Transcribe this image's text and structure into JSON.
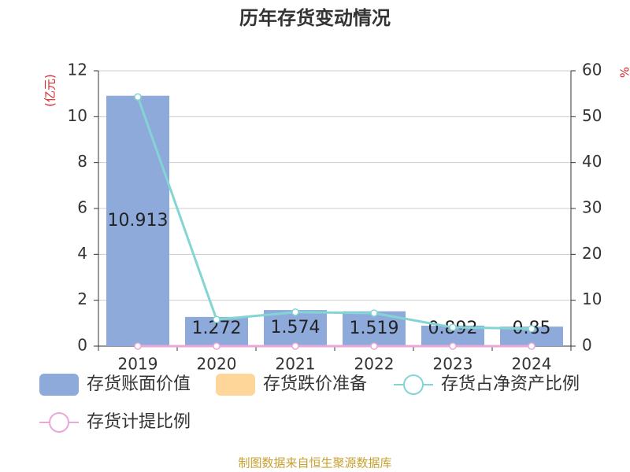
{
  "chart_data": {
    "type": "bar",
    "title": "历年存货变动情况",
    "y_label": "(亿元)",
    "y2_label": "%",
    "source": "制图数据来自恒生聚源数据库",
    "categories": [
      "2019",
      "2020",
      "2021",
      "2022",
      "2023",
      "2024"
    ],
    "series": [
      {
        "name": "存货账面价值",
        "type": "bar",
        "color": "#8eaadb",
        "values": [
          10.913,
          1.272,
          1.574,
          1.519,
          0.892,
          0.85
        ]
      },
      {
        "name": "存货跌价准备",
        "type": "bar",
        "color": "#ffd699",
        "values": [
          0,
          0,
          0,
          0,
          0,
          0
        ]
      },
      {
        "name": "存货占净资产比例",
        "type": "line",
        "axis": "y2",
        "color": "#84d4d4",
        "values": [
          54.3,
          5.8,
          7.4,
          7.2,
          4.1,
          3.8
        ]
      },
      {
        "name": "存货计提比例",
        "type": "line",
        "axis": "y2",
        "color": "#e8a8d8",
        "values": [
          0,
          0,
          0,
          0,
          0,
          0
        ]
      }
    ],
    "ylim": [
      0,
      12
    ],
    "yticks": [
      0,
      2,
      4,
      6,
      8,
      10,
      12
    ],
    "y2lim": [
      0,
      60
    ],
    "y2ticks": [
      0,
      10,
      20,
      30,
      40,
      50,
      60
    ],
    "grid": true
  }
}
